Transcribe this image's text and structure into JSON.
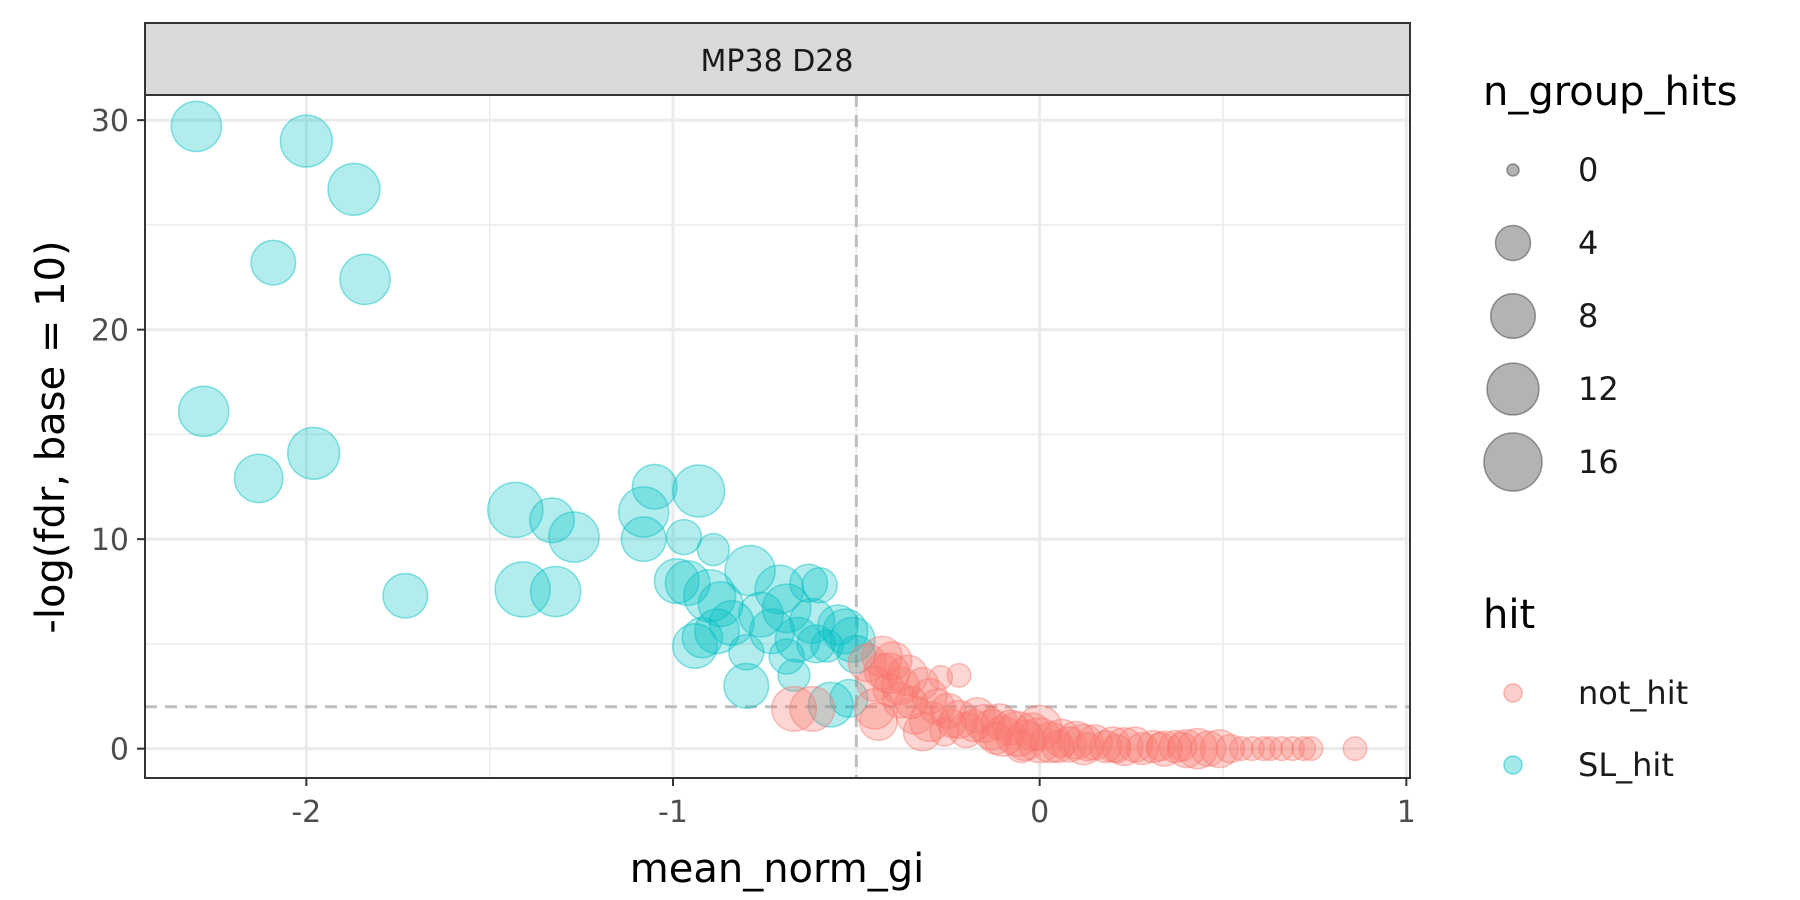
{
  "chart_data": {
    "type": "scatter",
    "facet": "MP38 D28",
    "xlabel": "mean_norm_gi",
    "ylabel": "-log(fdr, base = 10)",
    "xlim": [
      -2.44,
      1.01
    ],
    "ylim": [
      -1.4,
      31.2
    ],
    "x_ticks": [
      -2,
      -1,
      0,
      1
    ],
    "y_ticks": [
      0,
      10,
      20,
      30
    ],
    "x_minor": [
      -1.5,
      -0.5,
      0.5
    ],
    "y_minor": [
      5,
      15,
      25
    ],
    "vline": -0.5,
    "hline": 2,
    "colors": {
      "not_hit": "#F8766D",
      "SL_hit": "#00BFC4",
      "size_legend": "#808080"
    },
    "legend_size": {
      "title": "n_group_hits",
      "values": [
        0,
        4,
        8,
        12,
        16
      ],
      "labels": [
        "0",
        "4",
        "8",
        "12",
        "16"
      ]
    },
    "legend_color": {
      "title": "hit",
      "labels": [
        "not_hit",
        "SL_hit"
      ]
    },
    "series": [
      {
        "name": "SL_hit",
        "points": [
          {
            "x": -2.3,
            "y": 29.7,
            "size": 11
          },
          {
            "x": -2.0,
            "y": 29.0,
            "size": 12
          },
          {
            "x": -1.87,
            "y": 26.7,
            "size": 12
          },
          {
            "x": -2.09,
            "y": 23.2,
            "size": 8
          },
          {
            "x": -1.84,
            "y": 22.4,
            "size": 11
          },
          {
            "x": -2.28,
            "y": 16.1,
            "size": 11
          },
          {
            "x": -1.98,
            "y": 14.1,
            "size": 12
          },
          {
            "x": -2.13,
            "y": 12.9,
            "size": 10
          },
          {
            "x": -1.73,
            "y": 7.3,
            "size": 8
          },
          {
            "x": -1.43,
            "y": 11.4,
            "size": 14
          },
          {
            "x": -1.33,
            "y": 10.9,
            "size": 8
          },
          {
            "x": -1.27,
            "y": 10.1,
            "size": 11
          },
          {
            "x": -1.41,
            "y": 7.6,
            "size": 14
          },
          {
            "x": -1.32,
            "y": 7.5,
            "size": 11
          },
          {
            "x": -1.05,
            "y": 12.5,
            "size": 8
          },
          {
            "x": -0.93,
            "y": 12.3,
            "size": 12
          },
          {
            "x": -1.08,
            "y": 11.3,
            "size": 11
          },
          {
            "x": -1.08,
            "y": 10.0,
            "size": 8
          },
          {
            "x": -0.97,
            "y": 10.1,
            "size": 4
          },
          {
            "x": -0.89,
            "y": 9.5,
            "size": 3
          },
          {
            "x": -0.99,
            "y": 8.0,
            "size": 8
          },
          {
            "x": -0.96,
            "y": 7.9,
            "size": 8
          },
          {
            "x": -0.79,
            "y": 8.5,
            "size": 11
          },
          {
            "x": -0.71,
            "y": 7.6,
            "size": 10
          },
          {
            "x": -0.6,
            "y": 7.8,
            "size": 4
          },
          {
            "x": -0.63,
            "y": 7.9,
            "size": 5
          },
          {
            "x": -0.9,
            "y": 7.3,
            "size": 12
          },
          {
            "x": -0.87,
            "y": 6.9,
            "size": 8
          },
          {
            "x": -0.84,
            "y": 6.0,
            "size": 8
          },
          {
            "x": -0.88,
            "y": 5.6,
            "size": 8
          },
          {
            "x": -0.76,
            "y": 6.4,
            "size": 8
          },
          {
            "x": -0.69,
            "y": 6.7,
            "size": 10
          },
          {
            "x": -0.62,
            "y": 6.1,
            "size": 8
          },
          {
            "x": -0.55,
            "y": 5.9,
            "size": 6
          },
          {
            "x": -0.53,
            "y": 5.6,
            "size": 8
          },
          {
            "x": -0.73,
            "y": 5.6,
            "size": 8
          },
          {
            "x": -0.66,
            "y": 5.2,
            "size": 8
          },
          {
            "x": -0.61,
            "y": 5.0,
            "size": 5
          },
          {
            "x": -0.51,
            "y": 5.2,
            "size": 8
          },
          {
            "x": -0.94,
            "y": 4.9,
            "size": 8
          },
          {
            "x": -0.92,
            "y": 5.3,
            "size": 6
          },
          {
            "x": -0.8,
            "y": 4.6,
            "size": 4
          },
          {
            "x": -0.69,
            "y": 4.4,
            "size": 4
          },
          {
            "x": -0.58,
            "y": 4.9,
            "size": 3
          },
          {
            "x": -0.5,
            "y": 4.5,
            "size": 5
          },
          {
            "x": -0.8,
            "y": 3.0,
            "size": 8
          },
          {
            "x": -0.57,
            "y": 2.1,
            "size": 8
          },
          {
            "x": -0.52,
            "y": 2.4,
            "size": 5
          },
          {
            "x": -0.67,
            "y": 3.5,
            "size": 3
          }
        ]
      },
      {
        "name": "not_hit",
        "points": [
          {
            "x": -0.67,
            "y": 1.9,
            "size": 8
          },
          {
            "x": -0.62,
            "y": 1.9,
            "size": 8
          },
          {
            "x": -0.45,
            "y": 1.9,
            "size": 6
          },
          {
            "x": -0.44,
            "y": 1.3,
            "size": 5
          },
          {
            "x": -0.47,
            "y": 4.1,
            "size": 5
          },
          {
            "x": -0.43,
            "y": 4.4,
            "size": 6
          },
          {
            "x": -0.4,
            "y": 4.2,
            "size": 5
          },
          {
            "x": -0.41,
            "y": 3.6,
            "size": 6
          },
          {
            "x": -0.36,
            "y": 3.5,
            "size": 6
          },
          {
            "x": -0.38,
            "y": 3.0,
            "size": 5
          },
          {
            "x": -0.45,
            "y": 3.1,
            "size": 4
          },
          {
            "x": -0.32,
            "y": 3.1,
            "size": 3
          },
          {
            "x": -0.3,
            "y": 2.5,
            "size": 4
          },
          {
            "x": -0.38,
            "y": 2.3,
            "size": 4
          },
          {
            "x": -0.27,
            "y": 3.4,
            "size": 1
          },
          {
            "x": -0.22,
            "y": 3.5,
            "size": 1
          },
          {
            "x": -0.34,
            "y": 1.6,
            "size": 5
          },
          {
            "x": -0.3,
            "y": 1.3,
            "size": 6
          },
          {
            "x": -0.32,
            "y": 0.8,
            "size": 5
          },
          {
            "x": -0.28,
            "y": 2.0,
            "size": 4
          },
          {
            "x": -0.25,
            "y": 1.8,
            "size": 4
          },
          {
            "x": -0.22,
            "y": 1.4,
            "size": 5
          },
          {
            "x": -0.2,
            "y": 0.9,
            "size": 4
          },
          {
            "x": -0.26,
            "y": 0.8,
            "size": 2
          },
          {
            "x": -0.17,
            "y": 1.6,
            "size": 4
          },
          {
            "x": -0.15,
            "y": 1.2,
            "size": 5
          },
          {
            "x": -0.13,
            "y": 0.9,
            "size": 6
          },
          {
            "x": -0.11,
            "y": 1.3,
            "size": 4
          },
          {
            "x": -0.1,
            "y": 0.6,
            "size": 6
          },
          {
            "x": -0.08,
            "y": 1.0,
            "size": 4
          },
          {
            "x": -0.06,
            "y": 0.7,
            "size": 8
          },
          {
            "x": -0.04,
            "y": 0.4,
            "size": 6
          },
          {
            "x": -0.02,
            "y": 0.8,
            "size": 5
          },
          {
            "x": 0.0,
            "y": 0.4,
            "size": 8
          },
          {
            "x": 0.0,
            "y": 1.0,
            "size": 8
          },
          {
            "x": 0.03,
            "y": 0.3,
            "size": 6
          },
          {
            "x": 0.06,
            "y": 0.5,
            "size": 5
          },
          {
            "x": 0.08,
            "y": 0.2,
            "size": 4
          },
          {
            "x": 0.1,
            "y": 0.4,
            "size": 5
          },
          {
            "x": 0.12,
            "y": 0.2,
            "size": 6
          },
          {
            "x": 0.15,
            "y": 0.3,
            "size": 4
          },
          {
            "x": 0.18,
            "y": 0.1,
            "size": 3
          },
          {
            "x": 0.2,
            "y": 0.2,
            "size": 4
          },
          {
            "x": 0.23,
            "y": 0.1,
            "size": 5
          },
          {
            "x": 0.26,
            "y": 0.2,
            "size": 4
          },
          {
            "x": 0.28,
            "y": 0.0,
            "size": 3
          },
          {
            "x": 0.31,
            "y": 0.1,
            "size": 3
          },
          {
            "x": 0.34,
            "y": 0.0,
            "size": 4
          },
          {
            "x": 0.37,
            "y": 0.1,
            "size": 3
          },
          {
            "x": 0.4,
            "y": 0.0,
            "size": 5
          },
          {
            "x": 0.43,
            "y": 0.0,
            "size": 6
          },
          {
            "x": 0.46,
            "y": 0.0,
            "size": 4
          },
          {
            "x": 0.49,
            "y": 0.0,
            "size": 5
          },
          {
            "x": 0.52,
            "y": 0.0,
            "size": 2
          },
          {
            "x": 0.55,
            "y": 0.0,
            "size": 1
          },
          {
            "x": 0.58,
            "y": 0.0,
            "size": 1
          },
          {
            "x": 0.61,
            "y": 0.0,
            "size": 1
          },
          {
            "x": 0.63,
            "y": 0.0,
            "size": 1
          },
          {
            "x": 0.66,
            "y": 0.0,
            "size": 1
          },
          {
            "x": 0.69,
            "y": 0.0,
            "size": 1
          },
          {
            "x": 0.72,
            "y": 0.0,
            "size": 1
          },
          {
            "x": 0.74,
            "y": 0.0,
            "size": 1
          },
          {
            "x": 0.86,
            "y": 0.0,
            "size": 1
          },
          {
            "x": -0.05,
            "y": 0.1,
            "size": 3
          },
          {
            "x": 0.05,
            "y": 0.1,
            "size": 3
          },
          {
            "x": -0.12,
            "y": 0.5,
            "size": 3
          },
          {
            "x": -0.18,
            "y": 1.1,
            "size": 3
          },
          {
            "x": -0.24,
            "y": 1.2,
            "size": 2
          },
          {
            "x": -0.35,
            "y": 2.2,
            "size": 3
          },
          {
            "x": -0.41,
            "y": 2.8,
            "size": 3
          },
          {
            "x": -0.43,
            "y": 3.7,
            "size": 4
          },
          {
            "x": 0.13,
            "y": 0.1,
            "size": 2
          },
          {
            "x": 0.21,
            "y": 0.0,
            "size": 2
          },
          {
            "x": 0.33,
            "y": 0.1,
            "size": 2
          },
          {
            "x": 0.39,
            "y": 0.1,
            "size": 2
          }
        ]
      }
    ]
  }
}
